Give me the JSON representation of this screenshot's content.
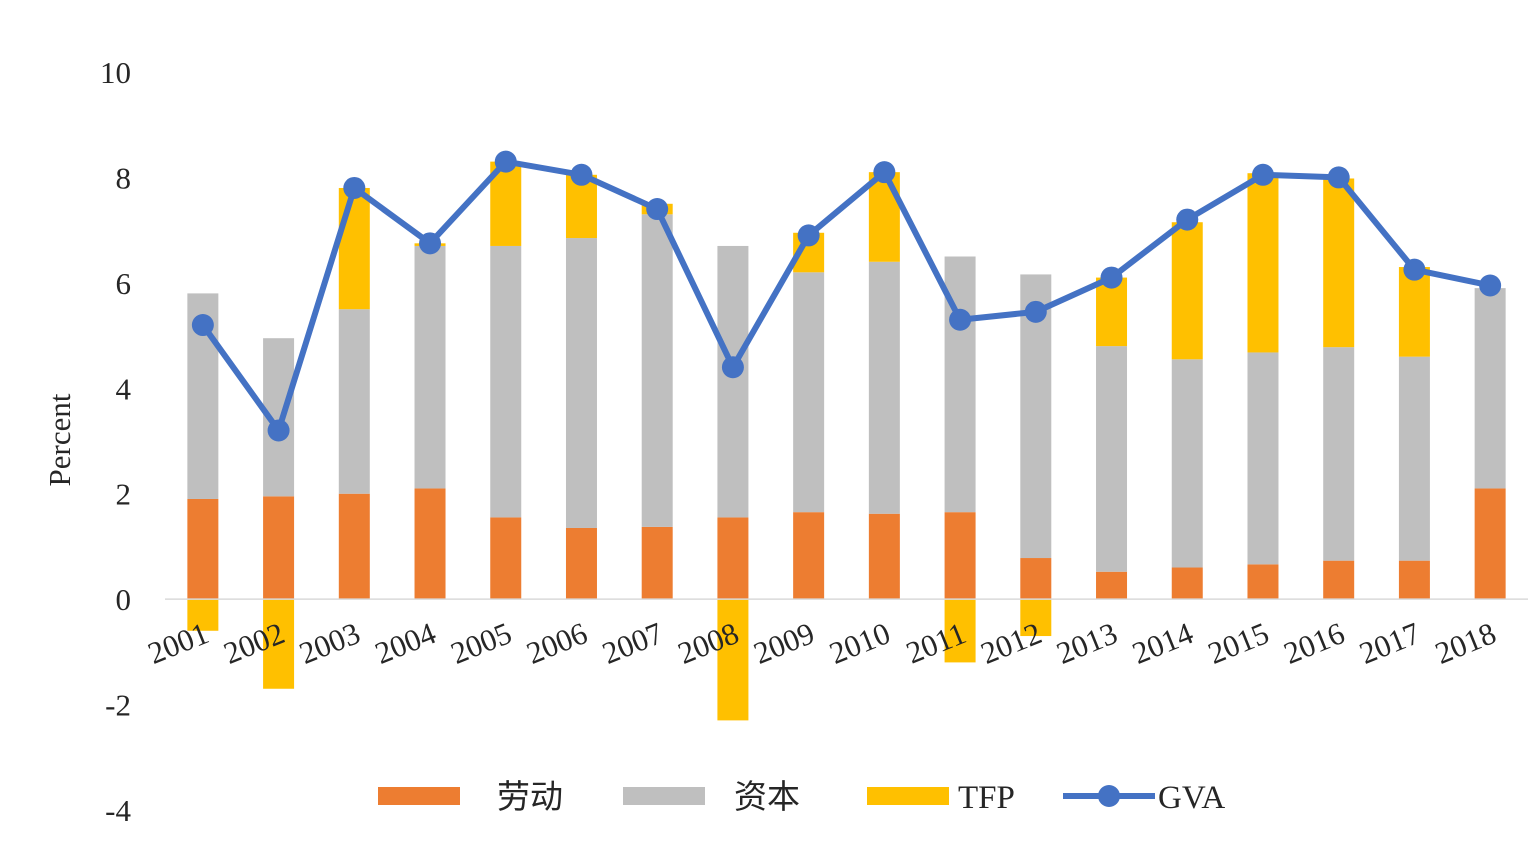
{
  "chart_data": {
    "type": "bar",
    "stacked": true,
    "categories": [
      "2001",
      "2002",
      "2003",
      "2004",
      "2005",
      "2006",
      "2007",
      "2008",
      "2009",
      "2010",
      "2011",
      "2012",
      "2013",
      "2014",
      "2015",
      "2016",
      "2017",
      "2018"
    ],
    "series": [
      {
        "name": "劳动",
        "type": "bar",
        "color": "#ED7D31",
        "values": [
          1.9,
          1.95,
          2.0,
          2.1,
          1.55,
          1.35,
          1.37,
          1.55,
          1.65,
          1.62,
          1.65,
          0.78,
          0.52,
          0.6,
          0.66,
          0.73,
          0.73,
          2.1
        ]
      },
      {
        "name": "资本",
        "type": "bar",
        "color": "#BFBFBF",
        "values": [
          3.9,
          3.0,
          3.5,
          4.6,
          5.15,
          5.5,
          5.93,
          5.15,
          4.55,
          4.78,
          4.85,
          5.38,
          4.28,
          3.95,
          4.02,
          4.05,
          3.87,
          3.8
        ]
      },
      {
        "name": "TFP",
        "type": "bar",
        "color": "#FFC000",
        "values": [
          -0.6,
          -1.7,
          2.3,
          0.05,
          1.6,
          1.2,
          0.2,
          -2.3,
          0.75,
          1.7,
          -1.2,
          -0.7,
          1.3,
          2.6,
          3.4,
          3.2,
          1.7,
          0.0
        ]
      },
      {
        "name": "GVA",
        "type": "line",
        "color": "#4472C4",
        "values": [
          5.2,
          3.2,
          7.8,
          6.75,
          8.3,
          8.05,
          7.4,
          4.4,
          6.9,
          8.1,
          5.3,
          5.45,
          6.1,
          7.2,
          8.05,
          8.0,
          6.25,
          5.95
        ]
      }
    ],
    "ylabel": "Percent",
    "xlabel": "",
    "ylim": [
      -4,
      10
    ],
    "yticks": [
      -4,
      -2,
      0,
      2,
      4,
      6,
      8,
      10
    ],
    "grid": false,
    "legend": "bottom"
  }
}
